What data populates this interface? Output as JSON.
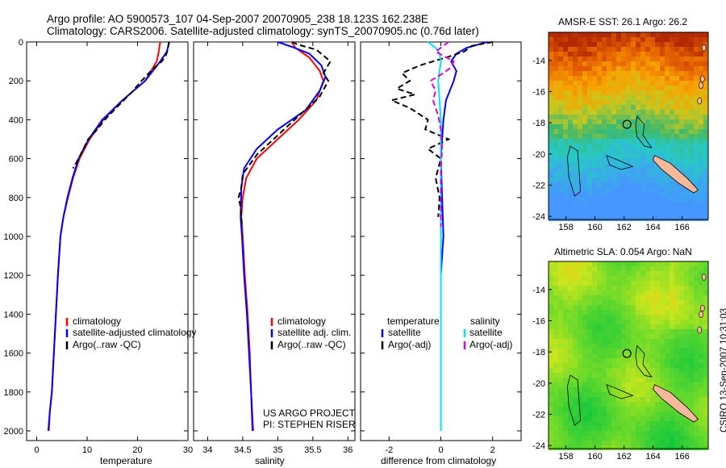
{
  "header": {
    "title_line1": "Argo profile: AO 5900573_107 04-Sep-2007 20070905_238 18.123S 162.238E",
    "title_line2": "Climatology: CARS2006. Satellite-adjusted climatology: synTS_20070905.nc (0.76d later)"
  },
  "side_label": "CSIRO 13-Sep-2007 10:31:03",
  "chart_data": [
    {
      "type": "line",
      "id": "temperature",
      "xlabel": "temperature",
      "ylabel": "",
      "xlim": [
        -2,
        30
      ],
      "ylim": [
        2050,
        0
      ],
      "xticks": [
        0,
        10,
        20,
        30
      ],
      "yticks": [
        0,
        200,
        400,
        600,
        800,
        1000,
        1200,
        1400,
        1600,
        1800,
        2000
      ],
      "legend": [
        "climatology",
        "satellite-adjusted climatology",
        "Argo(..raw -QC)"
      ],
      "series": [
        {
          "name": "climatology",
          "color": "#ff0000",
          "dash": "",
          "points": [
            [
              24.5,
              0
            ],
            [
              24.2,
              50
            ],
            [
              23.8,
              100
            ],
            [
              21.5,
              200
            ],
            [
              17,
              300
            ],
            [
              13.2,
              400
            ],
            [
              10.5,
              500
            ],
            [
              8.5,
              600
            ],
            [
              7.2,
              700
            ],
            [
              6.2,
              800
            ],
            [
              5.3,
              900
            ],
            [
              4.7,
              1000
            ],
            [
              4.2,
              1200
            ],
            [
              3.8,
              1400
            ],
            [
              3.4,
              1600
            ],
            [
              3.0,
              1800
            ],
            [
              2.6,
              1900
            ],
            [
              2.4,
              2000
            ]
          ]
        },
        {
          "name": "satellite-adjusted climatology",
          "color": "#0000ff",
          "dash": "",
          "points": [
            [
              26.3,
              0
            ],
            [
              25.8,
              50
            ],
            [
              24.5,
              100
            ],
            [
              21.5,
              200
            ],
            [
              17,
              300
            ],
            [
              13,
              400
            ],
            [
              10.3,
              500
            ],
            [
              8.3,
              600
            ],
            [
              7.1,
              700
            ],
            [
              6.1,
              800
            ],
            [
              5.3,
              900
            ],
            [
              4.7,
              1000
            ],
            [
              4.2,
              1200
            ],
            [
              3.8,
              1400
            ],
            [
              3.4,
              1600
            ],
            [
              3.0,
              1800
            ],
            [
              2.6,
              1900
            ],
            [
              2.3,
              2000
            ]
          ]
        },
        {
          "name": "Argo(..raw -QC)",
          "color": "#000000",
          "dash": "7,4",
          "points": [
            [
              26.2,
              0
            ],
            [
              26.0,
              40
            ],
            [
              25.6,
              70
            ],
            [
              24.8,
              100
            ],
            [
              23.0,
              140
            ],
            [
              20.8,
              200
            ],
            [
              18.8,
              260
            ],
            [
              16.5,
              320
            ],
            [
              13.5,
              400
            ],
            [
              12.0,
              450
            ],
            [
              10.2,
              500
            ],
            [
              8.3,
              600
            ],
            [
              7.2,
              650
            ]
          ]
        }
      ]
    },
    {
      "type": "line",
      "id": "salinity",
      "xlabel": "salinity",
      "ylabel": "",
      "xlim": [
        33.8,
        36.1
      ],
      "ylim": [
        2050,
        0
      ],
      "xticks": [
        34,
        34.5,
        35,
        35.5,
        36
      ],
      "legend": [
        "climatology",
        "satellite adj. clim.",
        "Argo(..raw -QC)"
      ],
      "annotation": [
        "US ARGO PROJECT",
        "PI: STEPHEN RISER"
      ],
      "series": [
        {
          "name": "climatology",
          "color": "#ff0000",
          "dash": "",
          "points": [
            [
              35.2,
              0
            ],
            [
              35.25,
              30
            ],
            [
              35.45,
              80
            ],
            [
              35.6,
              150
            ],
            [
              35.65,
              200
            ],
            [
              35.55,
              300
            ],
            [
              35.3,
              400
            ],
            [
              35.0,
              500
            ],
            [
              34.7,
              600
            ],
            [
              34.55,
              700
            ],
            [
              34.5,
              800
            ],
            [
              34.48,
              900
            ],
            [
              34.5,
              1000
            ],
            [
              34.53,
              1200
            ],
            [
              34.57,
              1400
            ],
            [
              34.6,
              1600
            ],
            [
              34.62,
              1800
            ],
            [
              34.65,
              2000
            ]
          ]
        },
        {
          "name": "satellite adj. clim.",
          "color": "#0000ff",
          "dash": "",
          "points": [
            [
              35.0,
              0
            ],
            [
              35.2,
              25
            ],
            [
              35.45,
              60
            ],
            [
              35.62,
              120
            ],
            [
              35.68,
              180
            ],
            [
              35.6,
              250
            ],
            [
              35.4,
              350
            ],
            [
              35.0,
              450
            ],
            [
              34.7,
              550
            ],
            [
              34.52,
              650
            ],
            [
              34.48,
              750
            ],
            [
              34.47,
              900
            ],
            [
              34.49,
              1000
            ],
            [
              34.52,
              1200
            ],
            [
              34.56,
              1400
            ],
            [
              34.59,
              1600
            ],
            [
              34.62,
              1800
            ],
            [
              34.64,
              2000
            ]
          ]
        },
        {
          "name": "Argo(..raw -QC)",
          "color": "#000000",
          "dash": "7,4",
          "points": [
            [
              35.2,
              0
            ],
            [
              35.3,
              15
            ],
            [
              35.55,
              40
            ],
            [
              35.75,
              100
            ],
            [
              35.65,
              160
            ],
            [
              35.72,
              200
            ],
            [
              35.6,
              280
            ],
            [
              35.3,
              380
            ],
            [
              35.0,
              480
            ],
            [
              34.7,
              580
            ],
            [
              34.5,
              680
            ],
            [
              34.48,
              750
            ],
            [
              34.44,
              800
            ],
            [
              34.47,
              850
            ],
            [
              34.49,
              950
            ]
          ]
        }
      ]
    },
    {
      "type": "line",
      "id": "difference",
      "xlabel": "difference from climatology",
      "ylabel": "",
      "xlim": [
        -3.1,
        3.1
      ],
      "ylim": [
        2050,
        0
      ],
      "xticks": [
        -2,
        0,
        2
      ],
      "legend_left_title": "temperature",
      "legend_right_title": "salinity",
      "legend_left": [
        "satellite",
        "Argo(-adj)"
      ],
      "legend_right": [
        "satellite",
        "Argo(-adj)"
      ],
      "series": [
        {
          "name": "temperature satellite",
          "color": "#0000ff",
          "dash": "",
          "points": [
            [
              1.8,
              0
            ],
            [
              1.0,
              30
            ],
            [
              0.6,
              60
            ],
            [
              0.4,
              100
            ],
            [
              0.6,
              150
            ],
            [
              0.5,
              200
            ],
            [
              0.2,
              300
            ],
            [
              0.1,
              400
            ],
            [
              0.05,
              500
            ],
            [
              0.0,
              600
            ],
            [
              0.05,
              800
            ],
            [
              0.1,
              1000
            ],
            [
              0.0,
              1200
            ],
            [
              0.0,
              2000
            ]
          ]
        },
        {
          "name": "temperature Argo(-adj)",
          "color": "#000000",
          "dash": "7,4",
          "points": [
            [
              2.0,
              0
            ],
            [
              1.2,
              20
            ],
            [
              0.9,
              50
            ],
            [
              0.2,
              80
            ],
            [
              -0.8,
              120
            ],
            [
              -1.5,
              160
            ],
            [
              -1.2,
              200
            ],
            [
              -1.7,
              240
            ],
            [
              -1.0,
              270
            ],
            [
              -1.9,
              300
            ],
            [
              -1.2,
              340
            ],
            [
              -0.5,
              400
            ],
            [
              -0.6,
              450
            ],
            [
              0.3,
              500
            ],
            [
              -0.5,
              550
            ],
            [
              0.0,
              600
            ],
            [
              -0.2,
              700
            ],
            [
              -0.05,
              800
            ],
            [
              -0.1,
              900
            ]
          ]
        },
        {
          "name": "salinity satellite",
          "color": "#00e5ff",
          "dash": "",
          "points": [
            [
              -0.5,
              0
            ],
            [
              -0.2,
              30
            ],
            [
              -0.05,
              60
            ],
            [
              0.0,
              100
            ],
            [
              -0.1,
              200
            ],
            [
              0.0,
              400
            ],
            [
              0.0,
              2000
            ]
          ]
        },
        {
          "name": "salinity Argo(-adj)",
          "color": "#dd00dd",
          "dash": "7,4",
          "points": [
            [
              0.3,
              0
            ],
            [
              -0.2,
              50
            ],
            [
              0.5,
              100
            ],
            [
              0.4,
              130
            ],
            [
              0.1,
              160
            ],
            [
              -0.4,
              200
            ],
            [
              -0.2,
              250
            ],
            [
              -0.3,
              300
            ],
            [
              -0.1,
              380
            ],
            [
              0.0,
              450
            ],
            [
              0.05,
              550
            ],
            [
              0.0,
              650
            ],
            [
              0.0,
              950
            ]
          ]
        }
      ]
    },
    {
      "type": "heatmap",
      "id": "sst-map",
      "title": "AMSR-E SST: 26.1 Argo: 26.2",
      "xlim": [
        156.8,
        167.8
      ],
      "ylim": [
        -24.2,
        -12.2
      ],
      "xticks": [
        158,
        160,
        162,
        164,
        166
      ],
      "yticks": [
        -14,
        -16,
        -18,
        -20,
        -22,
        -24
      ],
      "marker": [
        162.2,
        -18.1
      ]
    },
    {
      "type": "heatmap",
      "id": "sla-map",
      "title": "Altimetric SLA: 0.054 Argo: NaN",
      "xlim": [
        156.8,
        167.8
      ],
      "ylim": [
        -24.2,
        -12.2
      ],
      "xticks": [
        158,
        160,
        162,
        164,
        166
      ],
      "yticks": [
        -14,
        -16,
        -18,
        -20,
        -22,
        -24
      ],
      "marker": [
        162.2,
        -18.1
      ]
    }
  ]
}
